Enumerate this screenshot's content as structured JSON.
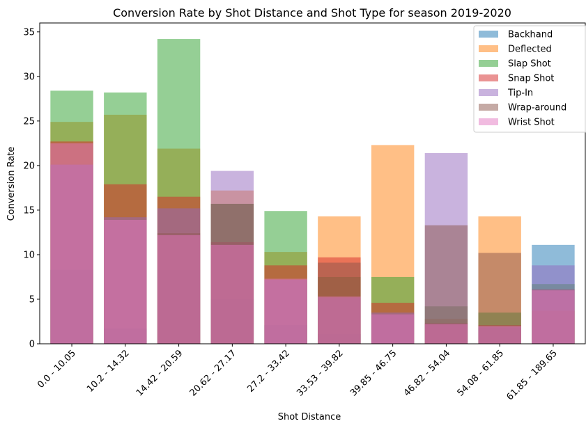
{
  "chart_data": {
    "type": "bar",
    "title": "Conversion Rate by Shot Distance and Shot Type for season 2019-2020",
    "xlabel": "Shot Distance",
    "ylabel": "Conversion Rate",
    "ylim": [
      0,
      36
    ],
    "yticks": [
      0,
      5,
      10,
      15,
      20,
      25,
      30,
      35
    ],
    "categories": [
      "0.0 - 10.05",
      "10.2 - 14.32",
      "14.42 - 20.59",
      "20.62 - 27.17",
      "27.2 - 33.42",
      "33.53 - 39.82",
      "39.85 - 46.75",
      "46.82 - 54.04",
      "54.08 - 61.85",
      "61.85 - 189.65"
    ],
    "legend_position": "top-right",
    "bars_overlaid": true,
    "series": [
      {
        "name": "Backhand",
        "color": "#1f77b4",
        "values": [
          8.3,
          1.7,
          8.3,
          5.0,
          2.1,
          1.1,
          3.3,
          2.2,
          1.8,
          11.1
        ]
      },
      {
        "name": "Deflected",
        "color": "#ff7f0e",
        "values": [
          24.9,
          25.7,
          21.9,
          17.2,
          10.3,
          14.3,
          22.3,
          2.8,
          14.3,
          3.7
        ]
      },
      {
        "name": "Slap Shot",
        "color": "#2ca02c",
        "values": [
          28.4,
          28.2,
          34.2,
          15.7,
          14.9,
          7.5,
          7.5,
          4.2,
          3.5,
          6.7
        ]
      },
      {
        "name": "Snap Shot",
        "color": "#d62728",
        "values": [
          22.7,
          17.9,
          16.5,
          11.4,
          8.8,
          9.7,
          4.6,
          2.3,
          2.1,
          6.1
        ]
      },
      {
        "name": "Tip-In",
        "color": "#9467bd",
        "values": [
          20.1,
          14.2,
          15.2,
          19.4,
          7.2,
          5.2,
          3.5,
          21.4,
          1.9,
          8.8
        ]
      },
      {
        "name": "Wrap-around",
        "color": "#8c564b",
        "values": [
          0,
          0,
          12.4,
          15.7,
          0,
          9.1,
          0,
          13.3,
          10.2,
          0
        ]
      },
      {
        "name": "Wrist Shot",
        "color": "#e377c2",
        "values": [
          22.5,
          13.9,
          12.2,
          11.1,
          7.3,
          5.3,
          3.3,
          2.2,
          2.0,
          6.0
        ]
      }
    ]
  }
}
